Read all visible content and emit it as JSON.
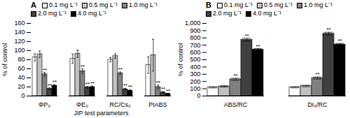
{
  "chart_data": [
    {
      "type": "bar",
      "title": "A",
      "ylabel": "% of control",
      "xlabel": "JIP test parameters",
      "ylim": [
        0,
        160
      ],
      "yticks": [
        0,
        20,
        40,
        60,
        80,
        100,
        120,
        140,
        160
      ],
      "categories": [
        "ΦP₀",
        "ΦE₀",
        "RC/Cs₀",
        "PIABS"
      ],
      "legend": "upper left",
      "series": [
        {
          "name": "0.1 mg L⁻¹",
          "color": "#ffffff",
          "values": [
            85,
            82,
            80,
            68
          ],
          "errors": [
            8,
            10,
            5,
            18
          ]
        },
        {
          "name": "0.5 mg L⁻¹",
          "color": "#c0c0c0",
          "values": [
            92,
            93,
            88,
            90
          ],
          "errors": [
            7,
            8,
            5,
            35
          ]
        },
        {
          "name": "1.0 mg L⁻¹",
          "color": "#808080",
          "values": [
            48,
            55,
            50,
            20
          ],
          "errors": [
            4,
            5,
            3,
            4
          ],
          "annotation": "**"
        },
        {
          "name": "2.0 mg L⁻¹",
          "color": "#404040",
          "values": [
            16,
            19,
            15,
            8
          ],
          "errors": [
            2,
            2,
            2,
            2
          ],
          "annotation": "**"
        },
        {
          "name": "4.0 mg L⁻¹",
          "color": "#000000",
          "values": [
            23,
            20,
            12,
            5
          ],
          "errors": [
            2,
            2,
            2,
            1
          ],
          "annotation": "**"
        }
      ]
    },
    {
      "type": "bar",
      "title": "B",
      "ylabel": "% of control",
      "ylim": [
        0,
        1000
      ],
      "yticks": [
        0,
        100,
        200,
        300,
        400,
        500,
        600,
        700,
        800,
        900,
        1000
      ],
      "categories": [
        "ABS/RC",
        "DI₀/RC"
      ],
      "legend": "upper left",
      "series": [
        {
          "name": "0.1 mg L⁻¹",
          "color": "#ffffff",
          "values": [
            118,
            120
          ],
          "errors": [
            8,
            8
          ]
        },
        {
          "name": "0.5 mg L⁻¹",
          "color": "#c0c0c0",
          "values": [
            132,
            138
          ],
          "errors": [
            10,
            10
          ]
        },
        {
          "name": "1.0 mg L⁻¹",
          "color": "#808080",
          "values": [
            230,
            248
          ],
          "errors": [
            15,
            15
          ],
          "annotation": "**"
        },
        {
          "name": "2.0 mg L⁻¹",
          "color": "#404040",
          "values": [
            775,
            858
          ],
          "errors": [
            20,
            20
          ],
          "annotation": "**"
        },
        {
          "name": "4.0 mg L⁻¹",
          "color": "#000000",
          "values": [
            638,
            710
          ],
          "errors": [
            15,
            15
          ],
          "annotation": "**"
        }
      ]
    }
  ]
}
